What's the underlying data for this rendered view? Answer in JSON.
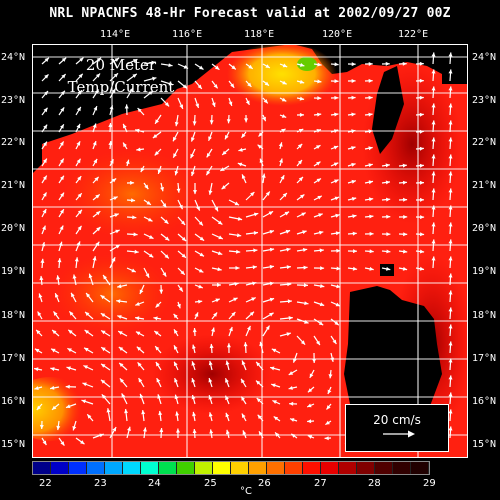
{
  "title": "NRL NPACNFS 48-Hr Forecast valid at 2002/09/27 00Z",
  "overlay_label": [
    "20 Meter",
    "Temp/Current"
  ],
  "lon_labels": [
    "114°E",
    "116°E",
    "118°E",
    "120°E",
    "122°E"
  ],
  "lat_labels": [
    "24°N",
    "23°N",
    "22°N",
    "21°N",
    "20°N",
    "19°N",
    "18°N",
    "17°N",
    "16°N",
    "15°N"
  ],
  "scale": {
    "label": "20 cm/s"
  },
  "colorbar": {
    "labels": [
      "22",
      "23",
      "24",
      "25",
      "26",
      "27",
      "28",
      "29"
    ],
    "unit": "°C",
    "colors": [
      "#00008a",
      "#0000c8",
      "#0030ff",
      "#0070ff",
      "#00a8ff",
      "#00d8ff",
      "#00ffd0",
      "#00e050",
      "#40d000",
      "#c0f000",
      "#ffff00",
      "#ffd000",
      "#ffa000",
      "#ff7000",
      "#ff4000",
      "#ff1000",
      "#e80000",
      "#b00000",
      "#800000",
      "#500000",
      "#300000",
      "#200000"
    ]
  },
  "colors": {
    "land": "#000000",
    "water_dominant": "#ff2010",
    "grid": "#ffffff"
  }
}
